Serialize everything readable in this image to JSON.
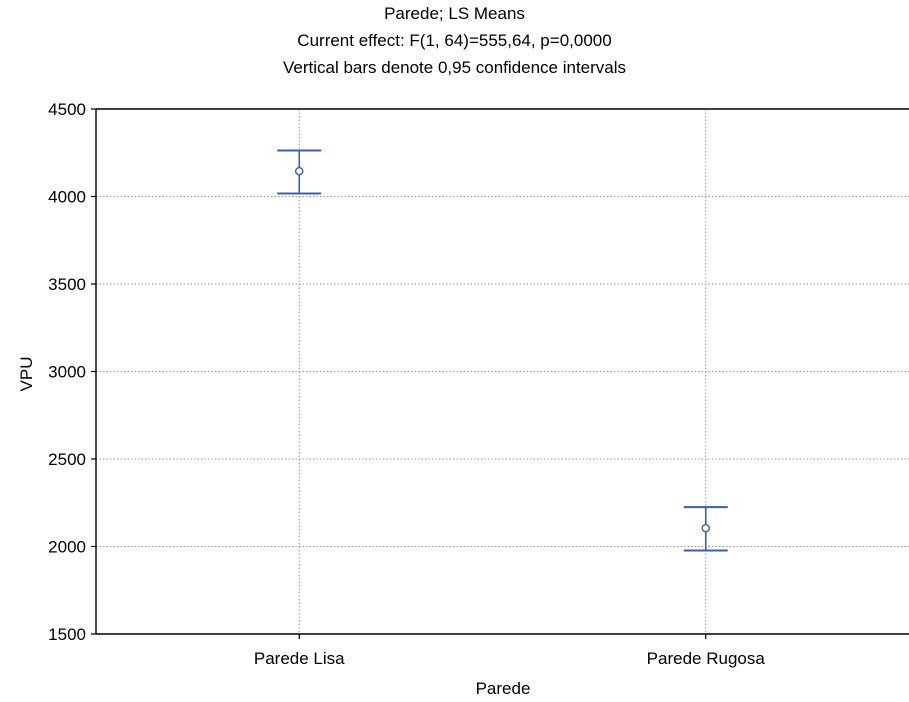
{
  "chart_data": {
    "type": "scatter",
    "title": "Parede; LS Means",
    "subtitle": "Current effect: F(1, 64)=555,64, p=0,0000",
    "annotation": "Vertical bars denote 0,95 confidence intervals",
    "xlabel": "Parede",
    "ylabel": "VPU",
    "categories": [
      "Parede Lisa",
      "Parede Rugosa"
    ],
    "series": [
      {
        "means": [
          4145,
          2105
        ],
        "ci_lower": [
          4017,
          1977
        ],
        "ci_upper": [
          4263,
          2225
        ]
      }
    ],
    "ylim": [
      1500,
      4500
    ],
    "yticks": [
      "1500",
      "2000",
      "2500",
      "3000",
      "3500",
      "4000",
      "4500"
    ],
    "grid": true,
    "colors": {
      "marker": "#3a5fb0",
      "grid": "#9a9a9a",
      "axis": "#000000"
    }
  }
}
